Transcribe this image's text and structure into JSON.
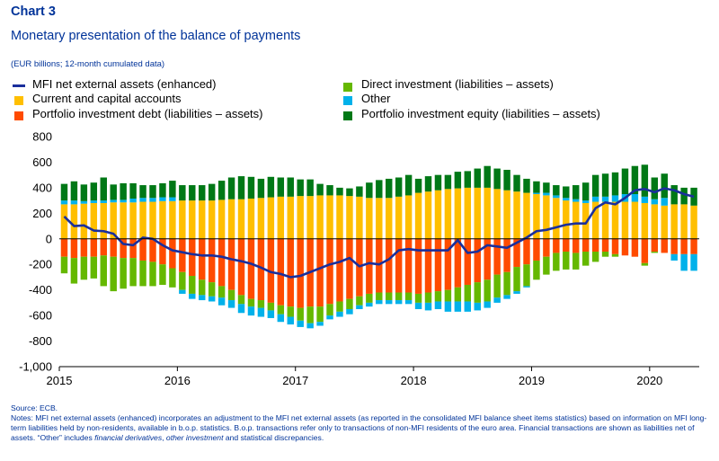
{
  "header": {
    "chart_number": "Chart 3",
    "title": "Monetary presentation of the balance of payments",
    "units": "(EUR billions; 12-month cumulated data)"
  },
  "colors": {
    "mfi_line": "#1a2f9c",
    "current_capital": "#ffbf00",
    "portfolio_debt": "#ff4b00",
    "direct_investment": "#65b800",
    "other": "#00b1ea",
    "portfolio_equity": "#007816",
    "axis": "#000000"
  },
  "legend": [
    {
      "key": "mfi",
      "label": "MFI net external assets (enhanced)",
      "swatch": "line",
      "color": "#1a2f9c"
    },
    {
      "key": "current",
      "label": "Current and capital accounts",
      "swatch": "box",
      "color": "#ffbf00"
    },
    {
      "key": "debt",
      "label": "Portfolio investment debt (liabilities – assets)",
      "swatch": "box",
      "color": "#ff4b00"
    },
    {
      "key": "direct",
      "label": "Direct investment (liabilities – assets)",
      "swatch": "box",
      "color": "#65b800"
    },
    {
      "key": "other",
      "label": "Other",
      "swatch": "box",
      "color": "#00b1ea"
    },
    {
      "key": "equity",
      "label": "Portfolio investment equity (liabilities – assets)",
      "swatch": "box",
      "color": "#007816"
    }
  ],
  "footer": {
    "source": "Source: ECB.",
    "notes_1": "Notes: MFI net external assets (enhanced) incorporates an adjustment to the MFI net external assets (as reported in the consolidated MFI balance sheet items statistics) based on information on MFI long-term liabilities held by non-residents, available in b.o.p. statistics. B.o.p. transactions refer only to transactions of non-MFI residents of the euro area. Financial transactions are shown as liabilities net of assets. “Other” includes ",
    "notes_em_1": "financial derivatives",
    "notes_sep": ", ",
    "notes_em_2": "other investment",
    "notes_2": " and statistical discrepancies."
  },
  "chart_data": {
    "type": "bar",
    "stacked": true,
    "ylim": [
      -1000,
      800
    ],
    "yticks": [
      800,
      600,
      400,
      200,
      0,
      -200,
      -400,
      -600,
      -800,
      -1000
    ],
    "ytick_labels": [
      "800",
      "600",
      "400",
      "200",
      "0",
      "-200",
      "-400",
      "-600",
      "-800",
      "-1,000"
    ],
    "xlim": [
      2015.0,
      2020.42
    ],
    "xticks": [
      2015,
      2016,
      2017,
      2018,
      2019,
      2020
    ],
    "xtick_labels": [
      "2015",
      "2016",
      "2017",
      "2018",
      "2019",
      "2020"
    ],
    "grid": false,
    "legend_position": "top",
    "period_start": "2015-01",
    "period_end": "2020-05",
    "frequency": "monthly",
    "series": [
      {
        "name": "Current and capital accounts",
        "key": "current",
        "values": [
          270,
          270,
          275,
          280,
          280,
          285,
          285,
          285,
          290,
          290,
          295,
          295,
          300,
          300,
          300,
          300,
          305,
          310,
          310,
          315,
          320,
          325,
          330,
          330,
          335,
          335,
          340,
          340,
          340,
          335,
          330,
          320,
          320,
          320,
          330,
          340,
          360,
          370,
          380,
          390,
          395,
          400,
          400,
          400,
          390,
          380,
          370,
          360,
          350,
          340,
          320,
          300,
          290,
          280,
          290,
          290,
          290,
          290,
          290,
          280,
          270,
          260,
          270,
          270,
          260
        ]
      },
      {
        "name": "Portfolio investment debt (liabilities – assets)",
        "key": "debt",
        "values": [
          -140,
          -150,
          -140,
          -140,
          -130,
          -140,
          -150,
          -150,
          -170,
          -180,
          -200,
          -230,
          -260,
          -290,
          -320,
          -340,
          -370,
          -400,
          -440,
          -470,
          -480,
          -500,
          -520,
          -530,
          -540,
          -530,
          -530,
          -510,
          -490,
          -470,
          -450,
          -430,
          -420,
          -420,
          -420,
          -420,
          -430,
          -420,
          -410,
          -400,
          -380,
          -360,
          -340,
          -320,
          -280,
          -260,
          -220,
          -200,
          -170,
          -140,
          -110,
          -100,
          -110,
          -100,
          -100,
          -100,
          -120,
          -130,
          -140,
          -190,
          -100,
          -110,
          -120,
          -120,
          -120
        ]
      },
      {
        "name": "Direct investment (liabilities – assets)",
        "key": "direct",
        "values": [
          -130,
          -200,
          -180,
          -170,
          -240,
          -270,
          -240,
          -220,
          -200,
          -190,
          -160,
          -150,
          -140,
          -140,
          -120,
          -110,
          -90,
          -80,
          -70,
          -60,
          -60,
          -60,
          -70,
          -80,
          -100,
          -130,
          -120,
          -90,
          -80,
          -80,
          -70,
          -70,
          -60,
          -60,
          -60,
          -60,
          -70,
          -80,
          -80,
          -90,
          -110,
          -130,
          -160,
          -170,
          -180,
          -180,
          -190,
          -170,
          -150,
          -140,
          -140,
          -140,
          -130,
          -110,
          -80,
          -40,
          -20,
          0,
          0,
          -20,
          -10,
          0,
          0,
          0,
          0
        ]
      },
      {
        "name": "Other",
        "key": "other",
        "values": [
          30,
          30,
          20,
          20,
          20,
          20,
          20,
          30,
          30,
          30,
          30,
          30,
          -30,
          -40,
          -40,
          -40,
          -60,
          -60,
          -70,
          -70,
          -70,
          -60,
          -60,
          -60,
          -50,
          -40,
          -30,
          -30,
          -40,
          -40,
          -30,
          -30,
          -30,
          -30,
          -30,
          -30,
          -50,
          -60,
          -60,
          -80,
          -80,
          -80,
          -60,
          -50,
          -40,
          -30,
          -20,
          -10,
          10,
          20,
          20,
          20,
          20,
          20,
          40,
          40,
          50,
          60,
          60,
          50,
          40,
          60,
          -50,
          -130,
          -130
        ]
      },
      {
        "name": "Portfolio investment equity (liabilities – assets)",
        "key": "equity",
        "values": [
          130,
          150,
          130,
          140,
          180,
          120,
          130,
          120,
          100,
          100,
          110,
          130,
          120,
          120,
          120,
          130,
          150,
          170,
          180,
          170,
          150,
          160,
          150,
          150,
          130,
          130,
          90,
          80,
          60,
          60,
          80,
          120,
          140,
          150,
          150,
          160,
          110,
          120,
          120,
          110,
          130,
          130,
          150,
          170,
          160,
          160,
          130,
          110,
          90,
          80,
          80,
          90,
          110,
          140,
          170,
          180,
          180,
          200,
          220,
          250,
          170,
          190,
          150,
          130,
          140
        ]
      },
      {
        "name": "MFI net external assets (enhanced)",
        "key": "mfi",
        "type": "line",
        "values": [
          175,
          100,
          105,
          65,
          60,
          40,
          -40,
          -50,
          10,
          0,
          -50,
          -90,
          -105,
          -120,
          -130,
          -130,
          -140,
          -160,
          -175,
          -195,
          -225,
          -260,
          -275,
          -300,
          -290,
          -260,
          -230,
          -200,
          -180,
          -150,
          -215,
          -190,
          -200,
          -160,
          -90,
          -80,
          -90,
          -90,
          -90,
          -90,
          -10,
          -110,
          -100,
          -50,
          -60,
          -70,
          -30,
          10,
          60,
          70,
          90,
          110,
          120,
          120,
          240,
          285,
          270,
          320,
          380,
          390,
          365,
          395,
          380,
          350,
          330
        ]
      }
    ]
  }
}
